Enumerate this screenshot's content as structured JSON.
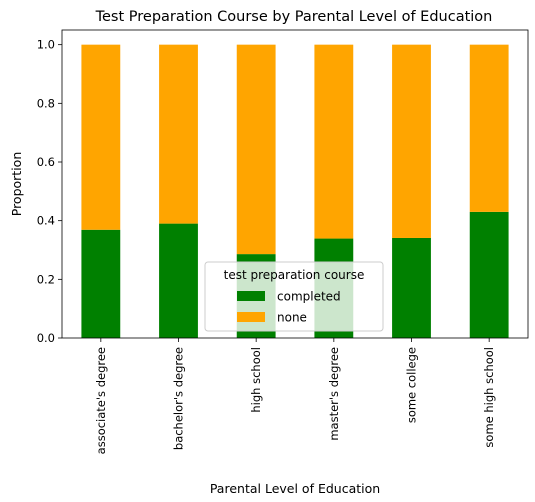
{
  "chart_data": {
    "type": "bar",
    "stacked": true,
    "title": "Test Preparation Course by Parental Level of Education",
    "xlabel": "Parental Level of Education",
    "ylabel": "Proportion",
    "ylim": [
      0,
      1.05
    ],
    "yticks": [
      "0.0",
      "0.2",
      "0.4",
      "0.6",
      "0.8",
      "1.0"
    ],
    "grid": false,
    "categories": [
      "associate's degree",
      "bachelor's degree",
      "high school",
      "master's degree",
      "some college",
      "some high school"
    ],
    "series": [
      {
        "name": "completed",
        "color": "#008000",
        "values": [
          0.369,
          0.39,
          0.286,
          0.339,
          0.341,
          0.43
        ]
      },
      {
        "name": "none",
        "color": "#ffa500",
        "values": [
          0.631,
          0.61,
          0.714,
          0.661,
          0.659,
          0.57
        ]
      }
    ],
    "legend": {
      "title": "test preparation course",
      "placement": "lower-center"
    }
  }
}
